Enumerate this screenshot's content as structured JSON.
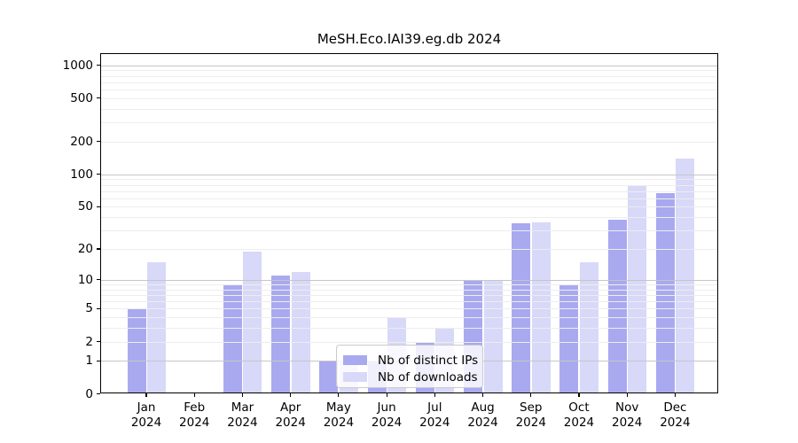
{
  "chart_data": {
    "type": "bar",
    "title": "MeSH.Eco.IAI39.eg.db 2024",
    "categories": [
      {
        "month": "Jan",
        "year": "2024"
      },
      {
        "month": "Feb",
        "year": "2024"
      },
      {
        "month": "Mar",
        "year": "2024"
      },
      {
        "month": "Apr",
        "year": "2024"
      },
      {
        "month": "May",
        "year": "2024"
      },
      {
        "month": "Jun",
        "year": "2024"
      },
      {
        "month": "Jul",
        "year": "2024"
      },
      {
        "month": "Aug",
        "year": "2024"
      },
      {
        "month": "Sep",
        "year": "2024"
      },
      {
        "month": "Oct",
        "year": "2024"
      },
      {
        "month": "Nov",
        "year": "2024"
      },
      {
        "month": "Dec",
        "year": "2024"
      }
    ],
    "series": [
      {
        "key": "distinct-ips",
        "name": "Nb of distinct IPs",
        "color": "#a9a9f0",
        "values": [
          5,
          0,
          9,
          11,
          1,
          1,
          2,
          10,
          35,
          9,
          38,
          67
        ]
      },
      {
        "key": "downloads",
        "name": "Nb of downloads",
        "color": "#d8d8f8",
        "values": [
          15,
          0,
          19,
          12,
          1,
          4,
          3,
          10,
          36,
          15,
          79,
          140
        ]
      }
    ],
    "yscale": "log1p",
    "yticks": [
      0,
      1,
      2,
      5,
      10,
      20,
      50,
      100,
      200,
      500,
      1000
    ],
    "ylim": [
      0,
      1300
    ],
    "xlabel": "",
    "ylabel": "",
    "grid": true,
    "legend_position": "lower center",
    "gridline_major_color": "#c6c6c6",
    "gridline_minor_color": "#ededed"
  }
}
